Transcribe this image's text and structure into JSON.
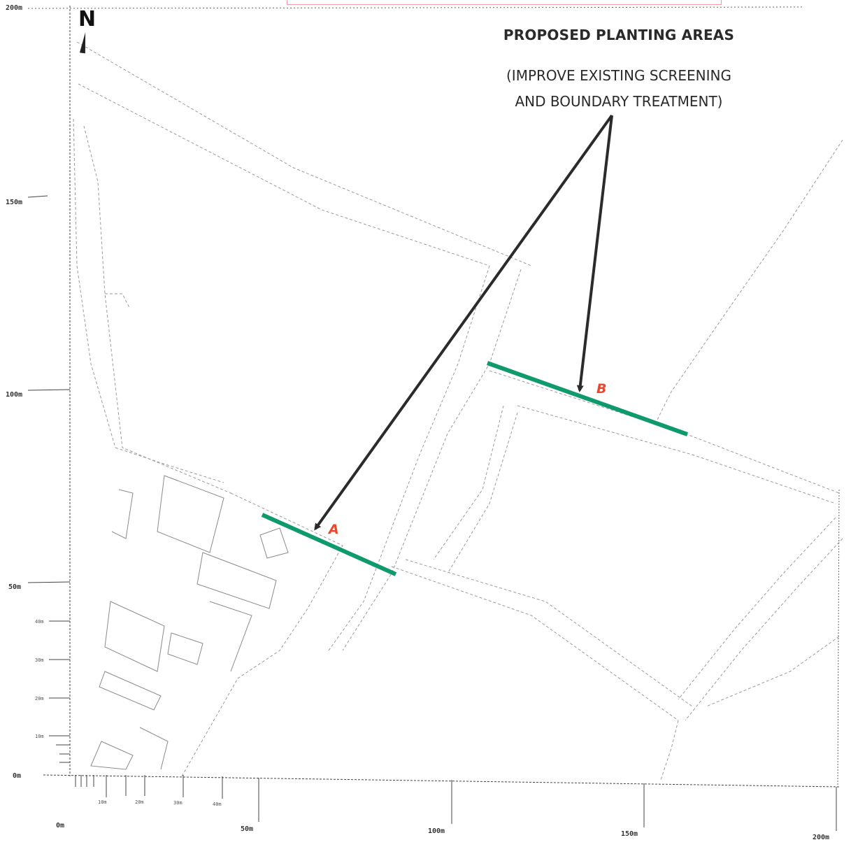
{
  "north_label": "N",
  "title": "PROPOSED PLANTING AREAS",
  "subtitle_line1": "(IMPROVE EXISTING SCREENING",
  "subtitle_line2": "AND BOUNDARY TREATMENT)",
  "planting_areas": [
    {
      "label": "A",
      "color": "#0f9a6e"
    },
    {
      "label": "B",
      "color": "#0f9a6e"
    }
  ],
  "label_color": "#e8482d",
  "arrow_color": "#2b2b2b",
  "y_axis_labels": [
    "200m",
    "150m",
    "100m",
    "50m",
    "0m"
  ],
  "y_minor_labels": [
    "40m",
    "30m",
    "20m",
    "10m"
  ],
  "x_axis_labels": [
    "0m",
    "50m",
    "100m",
    "150m",
    "200m"
  ],
  "x_minor_labels": [
    "10m",
    "20m",
    "30m",
    "40m"
  ]
}
